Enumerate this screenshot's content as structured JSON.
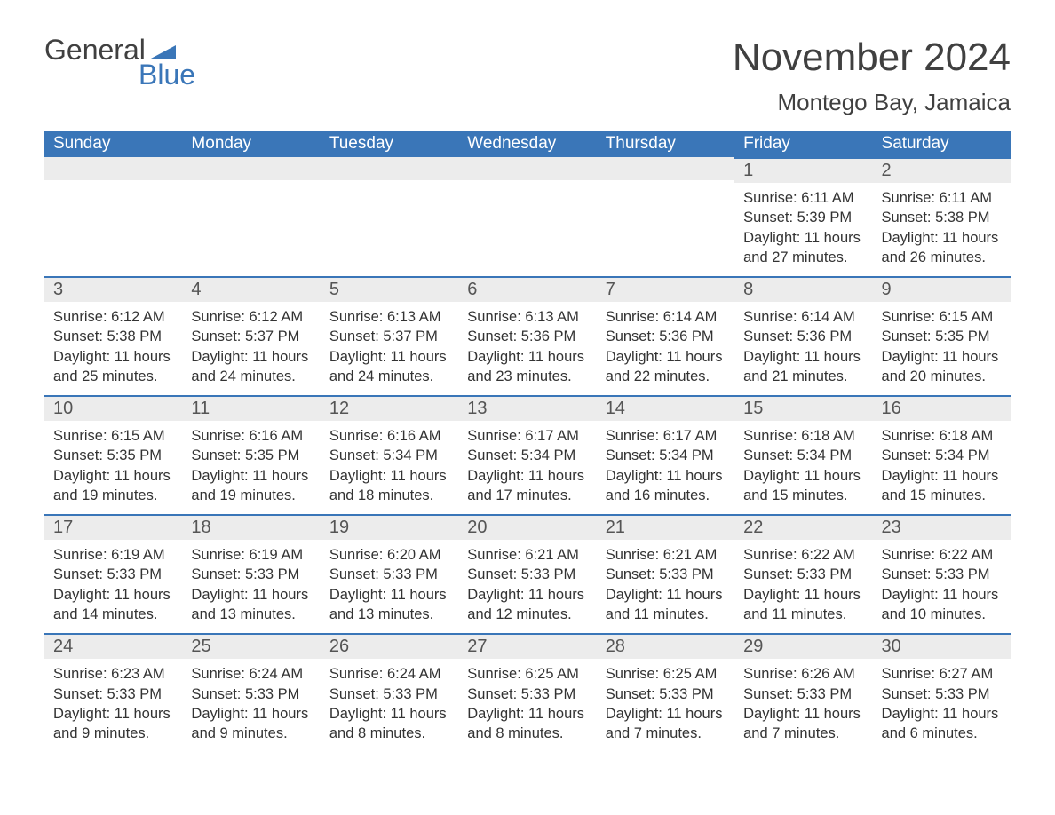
{
  "logo": {
    "word1": "General",
    "word2": "Blue",
    "brand_color": "#3a76b8",
    "text_color": "#404040"
  },
  "title": "November 2024",
  "location": "Montego Bay, Jamaica",
  "colors": {
    "header_bg": "#3a76b8",
    "header_text": "#ffffff",
    "daynum_bg": "#ececec",
    "row_border": "#3a76b8",
    "body_text": "#333333"
  },
  "day_headers": [
    "Sunday",
    "Monday",
    "Tuesday",
    "Wednesday",
    "Thursday",
    "Friday",
    "Saturday"
  ],
  "weeks": [
    [
      null,
      null,
      null,
      null,
      null,
      {
        "n": "1",
        "sunrise": "6:11 AM",
        "sunset": "5:39 PM",
        "daylight": "11 hours and 27 minutes."
      },
      {
        "n": "2",
        "sunrise": "6:11 AM",
        "sunset": "5:38 PM",
        "daylight": "11 hours and 26 minutes."
      }
    ],
    [
      {
        "n": "3",
        "sunrise": "6:12 AM",
        "sunset": "5:38 PM",
        "daylight": "11 hours and 25 minutes."
      },
      {
        "n": "4",
        "sunrise": "6:12 AM",
        "sunset": "5:37 PM",
        "daylight": "11 hours and 24 minutes."
      },
      {
        "n": "5",
        "sunrise": "6:13 AM",
        "sunset": "5:37 PM",
        "daylight": "11 hours and 24 minutes."
      },
      {
        "n": "6",
        "sunrise": "6:13 AM",
        "sunset": "5:36 PM",
        "daylight": "11 hours and 23 minutes."
      },
      {
        "n": "7",
        "sunrise": "6:14 AM",
        "sunset": "5:36 PM",
        "daylight": "11 hours and 22 minutes."
      },
      {
        "n": "8",
        "sunrise": "6:14 AM",
        "sunset": "5:36 PM",
        "daylight": "11 hours and 21 minutes."
      },
      {
        "n": "9",
        "sunrise": "6:15 AM",
        "sunset": "5:35 PM",
        "daylight": "11 hours and 20 minutes."
      }
    ],
    [
      {
        "n": "10",
        "sunrise": "6:15 AM",
        "sunset": "5:35 PM",
        "daylight": "11 hours and 19 minutes."
      },
      {
        "n": "11",
        "sunrise": "6:16 AM",
        "sunset": "5:35 PM",
        "daylight": "11 hours and 19 minutes."
      },
      {
        "n": "12",
        "sunrise": "6:16 AM",
        "sunset": "5:34 PM",
        "daylight": "11 hours and 18 minutes."
      },
      {
        "n": "13",
        "sunrise": "6:17 AM",
        "sunset": "5:34 PM",
        "daylight": "11 hours and 17 minutes."
      },
      {
        "n": "14",
        "sunrise": "6:17 AM",
        "sunset": "5:34 PM",
        "daylight": "11 hours and 16 minutes."
      },
      {
        "n": "15",
        "sunrise": "6:18 AM",
        "sunset": "5:34 PM",
        "daylight": "11 hours and 15 minutes."
      },
      {
        "n": "16",
        "sunrise": "6:18 AM",
        "sunset": "5:34 PM",
        "daylight": "11 hours and 15 minutes."
      }
    ],
    [
      {
        "n": "17",
        "sunrise": "6:19 AM",
        "sunset": "5:33 PM",
        "daylight": "11 hours and 14 minutes."
      },
      {
        "n": "18",
        "sunrise": "6:19 AM",
        "sunset": "5:33 PM",
        "daylight": "11 hours and 13 minutes."
      },
      {
        "n": "19",
        "sunrise": "6:20 AM",
        "sunset": "5:33 PM",
        "daylight": "11 hours and 13 minutes."
      },
      {
        "n": "20",
        "sunrise": "6:21 AM",
        "sunset": "5:33 PM",
        "daylight": "11 hours and 12 minutes."
      },
      {
        "n": "21",
        "sunrise": "6:21 AM",
        "sunset": "5:33 PM",
        "daylight": "11 hours and 11 minutes."
      },
      {
        "n": "22",
        "sunrise": "6:22 AM",
        "sunset": "5:33 PM",
        "daylight": "11 hours and 11 minutes."
      },
      {
        "n": "23",
        "sunrise": "6:22 AM",
        "sunset": "5:33 PM",
        "daylight": "11 hours and 10 minutes."
      }
    ],
    [
      {
        "n": "24",
        "sunrise": "6:23 AM",
        "sunset": "5:33 PM",
        "daylight": "11 hours and 9 minutes."
      },
      {
        "n": "25",
        "sunrise": "6:24 AM",
        "sunset": "5:33 PM",
        "daylight": "11 hours and 9 minutes."
      },
      {
        "n": "26",
        "sunrise": "6:24 AM",
        "sunset": "5:33 PM",
        "daylight": "11 hours and 8 minutes."
      },
      {
        "n": "27",
        "sunrise": "6:25 AM",
        "sunset": "5:33 PM",
        "daylight": "11 hours and 8 minutes."
      },
      {
        "n": "28",
        "sunrise": "6:25 AM",
        "sunset": "5:33 PM",
        "daylight": "11 hours and 7 minutes."
      },
      {
        "n": "29",
        "sunrise": "6:26 AM",
        "sunset": "5:33 PM",
        "daylight": "11 hours and 7 minutes."
      },
      {
        "n": "30",
        "sunrise": "6:27 AM",
        "sunset": "5:33 PM",
        "daylight": "11 hours and 6 minutes."
      }
    ]
  ],
  "labels": {
    "sunrise": "Sunrise:",
    "sunset": "Sunset:",
    "daylight": "Daylight:"
  }
}
